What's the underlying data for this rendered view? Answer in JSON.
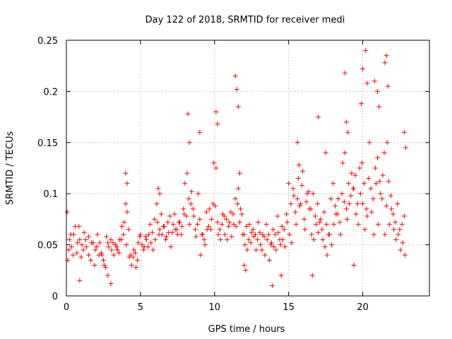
{
  "chart_data": {
    "type": "scatter",
    "title": "Day 122 of 2018, SRMTID for receiver medi",
    "xlabel": "GPS time / hours",
    "ylabel": "SRMTID / TECUs",
    "xlim": [
      0,
      24.5
    ],
    "ylim": [
      0,
      0.25
    ],
    "xticks": [
      0,
      5,
      10,
      15,
      20
    ],
    "xtick_labels": [
      "0",
      "5",
      "10",
      "15",
      "20"
    ],
    "yticks": [
      0,
      0.05,
      0.1,
      0.15,
      0.2,
      0.25
    ],
    "ytick_labels": [
      "0",
      "0.05",
      "0.1",
      "0.15",
      "0.2",
      "0.25"
    ],
    "grid": true,
    "marker": "+",
    "color": "#ff0000",
    "series": [
      {
        "name": "SRMTID",
        "x": [
          0.05,
          0.15,
          0.3,
          0.45,
          0.6,
          0.75,
          0.9,
          1.05,
          1.2,
          1.35,
          1.5,
          1.65,
          1.8,
          1.95,
          2.1,
          2.25,
          2.4,
          2.55,
          2.7,
          2.85,
          3.0,
          3.15,
          3.3,
          3.45,
          3.6,
          3.75,
          3.9,
          4.05,
          4.2,
          4.35,
          4.5,
          4.65,
          4.8,
          4.95,
          5.1,
          5.25,
          5.4,
          5.55,
          5.7,
          5.85,
          6.0,
          6.15,
          6.3,
          6.45,
          6.6,
          6.75,
          6.9,
          7.05,
          7.2,
          7.35,
          7.5,
          7.65,
          7.8,
          7.95,
          8.1,
          8.25,
          8.4,
          8.55,
          8.7,
          8.85,
          9.0,
          9.15,
          9.3,
          9.45,
          9.6,
          9.75,
          9.9,
          10.05,
          10.2,
          10.35,
          10.5,
          10.65,
          10.8,
          10.95,
          11.1,
          11.25,
          11.4,
          11.55,
          11.7,
          11.85,
          12.0,
          12.15,
          12.3,
          12.45,
          12.6,
          12.75,
          12.9,
          13.05,
          13.2,
          13.35,
          13.5,
          13.65,
          13.8,
          13.95,
          14.1,
          14.25,
          14.4,
          14.55,
          14.7,
          14.85,
          15.0,
          15.15,
          15.3,
          15.45,
          15.6,
          15.75,
          15.9,
          16.05,
          16.2,
          16.35,
          16.5,
          16.65,
          16.8,
          16.95,
          17.1,
          17.25,
          17.4,
          17.55,
          17.7,
          17.85,
          18.0,
          18.15,
          18.3,
          18.45,
          18.6,
          18.75,
          18.9,
          19.05,
          19.2,
          19.35,
          19.5,
          19.65,
          19.8,
          19.95,
          20.1,
          20.25,
          20.4,
          20.55,
          20.7,
          20.85,
          21.0,
          21.15,
          21.3,
          21.45,
          21.6,
          21.75,
          21.9,
          22.05,
          22.2,
          22.35,
          22.5,
          22.65,
          22.8,
          22.9,
          0.1,
          0.2,
          0.35,
          0.5,
          0.7,
          0.85,
          1.0,
          1.15,
          1.3,
          1.5,
          1.7,
          1.9,
          2.05,
          2.2,
          2.35,
          2.5,
          2.65,
          2.8,
          3.05,
          3.2,
          3.4,
          3.55,
          3.7,
          3.85,
          4.0,
          4.1,
          4.25,
          4.4,
          4.55,
          4.7,
          4.85,
          5.0,
          5.2,
          5.35,
          5.5,
          5.65,
          5.8,
          5.95,
          6.1,
          6.25,
          6.4,
          6.55,
          6.7,
          6.85,
          7.0,
          7.15,
          7.3,
          7.45,
          7.6,
          7.75,
          7.9,
          8.0,
          8.15,
          8.3,
          8.45,
          8.6,
          8.75,
          8.9,
          9.05,
          9.2,
          9.35,
          9.5,
          9.65,
          9.8,
          9.95,
          10.1,
          10.25,
          10.4,
          10.55,
          10.7,
          10.85,
          11.0,
          11.15,
          11.3,
          11.45,
          11.6,
          11.75,
          11.9,
          12.05,
          12.2,
          12.35,
          12.5,
          12.65,
          12.8,
          12.95,
          13.1,
          13.25,
          13.4,
          13.55,
          13.7,
          13.85,
          14.0,
          14.15,
          14.3,
          14.45,
          14.6,
          14.75,
          14.9,
          15.05,
          15.2,
          15.35,
          15.5,
          15.65,
          15.8,
          15.95,
          16.1,
          16.25,
          16.4,
          16.55,
          16.7,
          16.85,
          17.0,
          17.15,
          17.3,
          17.45,
          17.6,
          17.75,
          17.9,
          18.05,
          18.2,
          18.35,
          18.5,
          18.65,
          18.8,
          18.95,
          19.1,
          19.25,
          19.4,
          19.55,
          19.7,
          19.85,
          20.0,
          20.15,
          20.3,
          20.45,
          20.6,
          20.75,
          20.9,
          21.05,
          21.2,
          21.35,
          21.5,
          21.65,
          21.8,
          21.95,
          22.1,
          22.25,
          22.4,
          22.55,
          22.7,
          22.85,
          8.2,
          8.3,
          9.0,
          10.1,
          10.2,
          11.4,
          11.5,
          11.6,
          11.7,
          15.6,
          15.7,
          17.0,
          17.5,
          18.8,
          18.9,
          19.0,
          19.9,
          20.0,
          20.2,
          20.3,
          20.8,
          21.0,
          21.1,
          21.5,
          21.6,
          21.7,
          4.0,
          4.1,
          13.9,
          14.5,
          3.0,
          2.8,
          0.9,
          6.2,
          6.3,
          12.0,
          12.1,
          16.6,
          19.4,
          22.8
        ],
        "y": [
          0.082,
          0.045,
          0.06,
          0.04,
          0.068,
          0.052,
          0.055,
          0.05,
          0.062,
          0.048,
          0.058,
          0.035,
          0.052,
          0.045,
          0.06,
          0.052,
          0.04,
          0.03,
          0.058,
          0.048,
          0.055,
          0.052,
          0.05,
          0.045,
          0.055,
          0.068,
          0.072,
          0.05,
          0.065,
          0.04,
          0.038,
          0.042,
          0.035,
          0.058,
          0.05,
          0.048,
          0.055,
          0.06,
          0.052,
          0.045,
          0.055,
          0.072,
          0.065,
          0.06,
          0.068,
          0.058,
          0.062,
          0.048,
          0.07,
          0.065,
          0.06,
          0.072,
          0.068,
          0.08,
          0.078,
          0.095,
          0.09,
          0.085,
          0.065,
          0.07,
          0.075,
          0.06,
          0.055,
          0.082,
          0.068,
          0.065,
          0.09,
          0.088,
          0.072,
          0.065,
          0.07,
          0.078,
          0.075,
          0.068,
          0.082,
          0.08,
          0.095,
          0.09,
          0.072,
          0.08,
          0.06,
          0.068,
          0.055,
          0.052,
          0.065,
          0.06,
          0.055,
          0.062,
          0.045,
          0.058,
          0.07,
          0.06,
          0.05,
          0.065,
          0.06,
          0.078,
          0.055,
          0.068,
          0.065,
          0.08,
          0.11,
          0.09,
          0.105,
          0.082,
          0.095,
          0.088,
          0.108,
          0.075,
          0.092,
          0.102,
          0.085,
          0.1,
          0.078,
          0.09,
          0.072,
          0.065,
          0.082,
          0.07,
          0.06,
          0.095,
          0.11,
          0.088,
          0.08,
          0.072,
          0.1,
          0.092,
          0.085,
          0.11,
          0.098,
          0.105,
          0.118,
          0.09,
          0.125,
          0.13,
          0.11,
          0.085,
          0.115,
          0.105,
          0.095,
          0.125,
          0.135,
          0.112,
          0.095,
          0.14,
          0.088,
          0.112,
          0.098,
          0.08,
          0.072,
          0.09,
          0.065,
          0.07,
          0.078,
          0.145,
          0.035,
          0.055,
          0.048,
          0.06,
          0.042,
          0.068,
          0.038,
          0.045,
          0.055,
          0.04,
          0.052,
          0.03,
          0.048,
          0.04,
          0.042,
          0.035,
          0.028,
          0.052,
          0.045,
          0.04,
          0.048,
          0.042,
          0.055,
          0.06,
          0.09,
          0.082,
          0.038,
          0.03,
          0.045,
          0.028,
          0.052,
          0.06,
          0.045,
          0.058,
          0.048,
          0.07,
          0.062,
          0.075,
          0.09,
          0.06,
          0.08,
          0.068,
          0.055,
          0.072,
          0.078,
          0.062,
          0.08,
          0.065,
          0.072,
          0.06,
          0.085,
          0.11,
          0.12,
          0.07,
          0.102,
          0.078,
          0.058,
          0.1,
          0.04,
          0.06,
          0.05,
          0.065,
          0.085,
          0.075,
          0.13,
          0.125,
          0.06,
          0.055,
          0.08,
          0.06,
          0.055,
          0.072,
          0.058,
          0.07,
          0.068,
          0.105,
          0.085,
          0.06,
          0.05,
          0.045,
          0.07,
          0.062,
          0.058,
          0.045,
          0.072,
          0.05,
          0.06,
          0.04,
          0.055,
          0.035,
          0.052,
          0.048,
          0.045,
          0.062,
          0.05,
          0.055,
          0.048,
          0.072,
          0.06,
          0.052,
          0.098,
          0.07,
          0.115,
          0.09,
          0.122,
          0.065,
          0.1,
          0.085,
          0.06,
          0.055,
          0.07,
          0.062,
          0.075,
          0.055,
          0.048,
          0.04,
          0.06,
          0.05,
          0.07,
          0.08,
          0.095,
          0.06,
          0.13,
          0.14,
          0.075,
          0.09,
          0.12,
          0.105,
          0.08,
          0.07,
          0.1,
          0.09,
          0.065,
          0.078,
          0.15,
          0.082,
          0.06,
          0.11,
          0.07,
          0.1,
          0.118,
          0.06,
          0.15,
          0.07,
          0.085,
          0.065,
          0.055,
          0.06,
          0.045,
          0.052,
          0.04,
          0.178,
          0.15,
          0.16,
          0.18,
          0.168,
          0.215,
          0.202,
          0.185,
          0.12,
          0.15,
          0.128,
          0.175,
          0.14,
          0.218,
          0.17,
          0.16,
          0.188,
          0.222,
          0.24,
          0.208,
          0.21,
          0.2,
          0.185,
          0.228,
          0.235,
          0.205,
          0.12,
          0.11,
          0.01,
          0.02,
          0.012,
          0.02,
          0.015,
          0.105,
          0.1,
          0.03,
          0.025,
          0.02,
          0.03,
          0.16
        ]
      }
    ]
  }
}
